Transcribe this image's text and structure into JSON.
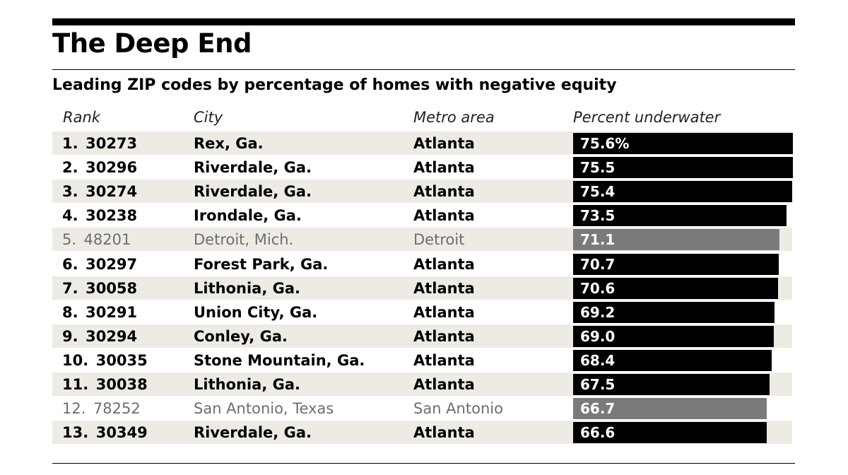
{
  "header": {
    "title": "The Deep End",
    "subtitle": "Leading ZIP codes by percentage of homes with negative equity"
  },
  "columns": {
    "rank": "Rank",
    "city": "City",
    "metro": "Metro area",
    "percent": "Percent underwater"
  },
  "colors": {
    "highlight_bar": "#000000",
    "muted_bar": "#7a7a7a",
    "row_band": "#eeebe5",
    "muted_text": "#6e6e6e"
  },
  "chart_data": {
    "type": "bar",
    "title": "The Deep End",
    "subtitle": "Leading ZIP codes by percentage of homes with negative equity",
    "value_label": "Percent underwater",
    "xlim": [
      0,
      75.6
    ],
    "rows": [
      {
        "rank": "1.",
        "zip": "30273",
        "city": "Rex, Ga.",
        "metro": "Atlanta",
        "value": 75.6,
        "label": "75.6%",
        "muted": false
      },
      {
        "rank": "2.",
        "zip": "30296",
        "city": "Riverdale, Ga.",
        "metro": "Atlanta",
        "value": 75.5,
        "label": "75.5",
        "muted": false
      },
      {
        "rank": "3.",
        "zip": "30274",
        "city": "Riverdale, Ga.",
        "metro": "Atlanta",
        "value": 75.4,
        "label": "75.4",
        "muted": false
      },
      {
        "rank": "4.",
        "zip": "30238",
        "city": "Irondale, Ga.",
        "metro": "Atlanta",
        "value": 73.5,
        "label": "73.5",
        "muted": false
      },
      {
        "rank": "5.",
        "zip": "48201",
        "city": "Detroit, Mich.",
        "metro": "Detroit",
        "value": 71.1,
        "label": "71.1",
        "muted": true
      },
      {
        "rank": "6.",
        "zip": "30297",
        "city": "Forest Park, Ga.",
        "metro": "Atlanta",
        "value": 70.7,
        "label": "70.7",
        "muted": false
      },
      {
        "rank": "7.",
        "zip": "30058",
        "city": "Lithonia, Ga.",
        "metro": "Atlanta",
        "value": 70.6,
        "label": "70.6",
        "muted": false
      },
      {
        "rank": "8.",
        "zip": "30291",
        "city": "Union City, Ga.",
        "metro": "Atlanta",
        "value": 69.2,
        "label": "69.2",
        "muted": false
      },
      {
        "rank": "9.",
        "zip": "30294",
        "city": "Conley, Ga.",
        "metro": "Atlanta",
        "value": 69.0,
        "label": "69.0",
        "muted": false
      },
      {
        "rank": "10.",
        "zip": "30035",
        "city": "Stone Mountain, Ga.",
        "metro": "Atlanta",
        "value": 68.4,
        "label": "68.4",
        "muted": false
      },
      {
        "rank": "11.",
        "zip": "30038",
        "city": "Lithonia, Ga.",
        "metro": "Atlanta",
        "value": 67.5,
        "label": "67.5",
        "muted": false
      },
      {
        "rank": "12.",
        "zip": "78252",
        "city": "San Antonio, Texas",
        "metro": "San Antonio",
        "value": 66.7,
        "label": "66.7",
        "muted": true
      },
      {
        "rank": "13.",
        "zip": "30349",
        "city": "Riverdale, Ga.",
        "metro": "Atlanta",
        "value": 66.6,
        "label": "66.6",
        "muted": false
      }
    ]
  }
}
